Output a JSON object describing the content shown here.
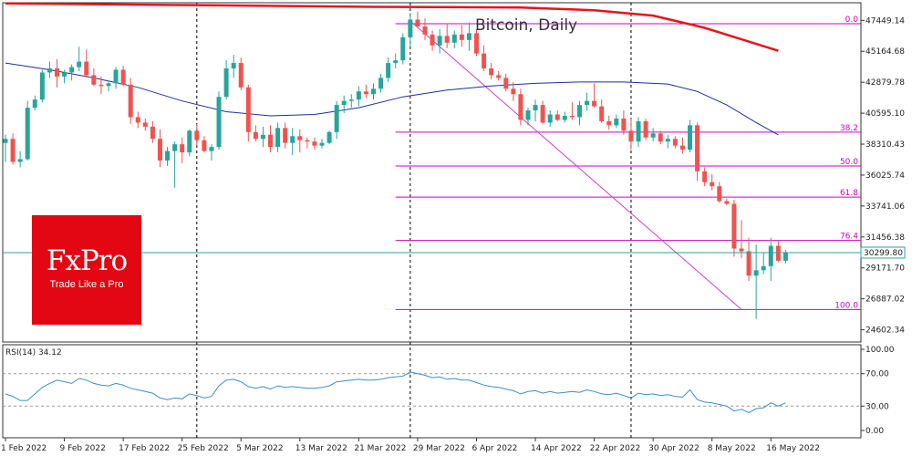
{
  "chart_data": [
    {
      "type": "candlestick",
      "title": "Bitcoin, Daily",
      "last_price": "30299.80",
      "y_ticks": [
        "47449.14",
        "45164.68",
        "42879.78",
        "40595.10",
        "38310.43",
        "36025.74",
        "33741.06",
        "31456.38",
        "29171.70",
        "26887.02",
        "24602.34"
      ],
      "y_tick_values": [
        47449.14,
        45164.68,
        42879.78,
        40595.1,
        38310.43,
        36025.74,
        33741.06,
        31456.38,
        29171.7,
        26887.02,
        24602.34
      ],
      "ylim": [
        23700,
        48750
      ],
      "x_labels": [
        "1 Feb 2022",
        "9 Feb 2022",
        "17 Feb 2022",
        "25 Feb 2022",
        "5 Mar 2022",
        "13 Mar 2022",
        "21 Mar 2022",
        "29 Mar 2022",
        "6 Apr 2022",
        "14 Apr 2022",
        "22 Apr 2022",
        "30 Apr 2022",
        "8 May 2022",
        "16 May 2022"
      ],
      "x_label_index": [
        0,
        8,
        16,
        24,
        32,
        40,
        48,
        56,
        64,
        72,
        80,
        88,
        96,
        104
      ],
      "vlines_index": [
        26,
        55,
        85
      ],
      "colors": {
        "up": "#26a69a",
        "down": "#ef5350",
        "ma_long": "#e8141c",
        "ma_short": "#1c2fa0",
        "fib": "#cc00cc",
        "trend": "#cc44cc",
        "price_line": "#26a69a"
      },
      "ohlc": [
        [
          38400,
          39000,
          37000,
          38700
        ],
        [
          38700,
          39100,
          36800,
          37000
        ],
        [
          37000,
          37800,
          36600,
          37200
        ],
        [
          37200,
          41500,
          37100,
          41000
        ],
        [
          41000,
          41900,
          40800,
          41600
        ],
        [
          41600,
          43800,
          41400,
          43600
        ],
        [
          43600,
          44400,
          43200,
          43900
        ],
        [
          43900,
          44600,
          42500,
          43300
        ],
        [
          43300,
          43800,
          42800,
          43600
        ],
        [
          43600,
          44200,
          43000,
          44000
        ],
        [
          44000,
          45500,
          43700,
          44400
        ],
        [
          44400,
          45300,
          43200,
          43400
        ],
        [
          43400,
          43900,
          42600,
          42700
        ],
        [
          42700,
          43300,
          42000,
          42600
        ],
        [
          42600,
          42900,
          42200,
          42800
        ],
        [
          42800,
          44000,
          42400,
          43800
        ],
        [
          43800,
          44100,
          42600,
          42700
        ],
        [
          42700,
          43200,
          39800,
          40300
        ],
        [
          40300,
          40700,
          39500,
          39900
        ],
        [
          39900,
          40200,
          39300,
          39600
        ],
        [
          39600,
          40000,
          38400,
          38700
        ],
        [
          38700,
          39400,
          36600,
          37100
        ],
        [
          37100,
          38100,
          36700,
          37800
        ],
        [
          37800,
          38500,
          35100,
          38300
        ],
        [
          38300,
          38800,
          36900,
          37700
        ],
        [
          37700,
          39400,
          37400,
          39300
        ],
        [
          39300,
          39800,
          38200,
          38600
        ],
        [
          38600,
          38900,
          37700,
          37800
        ],
        [
          37800,
          38300,
          37100,
          38100
        ],
        [
          38100,
          42200,
          37900,
          41800
        ],
        [
          41800,
          44500,
          41600,
          43900
        ],
        [
          43900,
          44900,
          43200,
          44300
        ],
        [
          44300,
          44700,
          42300,
          42500
        ],
        [
          42500,
          42700,
          38500,
          39200
        ],
        [
          39200,
          39700,
          38500,
          38700
        ],
        [
          38700,
          39600,
          38100,
          39000
        ],
        [
          39000,
          39700,
          37700,
          38100
        ],
        [
          38100,
          39900,
          37700,
          39500
        ],
        [
          39500,
          39900,
          38000,
          38400
        ],
        [
          38400,
          39500,
          37500,
          38900
        ],
        [
          38900,
          39400,
          37700,
          38600
        ],
        [
          38600,
          38800,
          38000,
          38500
        ],
        [
          38500,
          38800,
          37900,
          38200
        ],
        [
          38200,
          38700,
          38000,
          38400
        ],
        [
          38400,
          39300,
          38300,
          39200
        ],
        [
          39200,
          41500,
          38700,
          41200
        ],
        [
          41200,
          41900,
          40600,
          41500
        ],
        [
          41500,
          42000,
          41000,
          41600
        ],
        [
          41600,
          42600,
          41100,
          42200
        ],
        [
          42200,
          42700,
          41700,
          42000
        ],
        [
          42000,
          42800,
          41600,
          42400
        ],
        [
          42400,
          43500,
          42100,
          43200
        ],
        [
          43200,
          44700,
          42900,
          44300
        ],
        [
          44300,
          45000,
          43900,
          44500
        ],
        [
          44500,
          46500,
          44200,
          46200
        ],
        [
          46200,
          48000,
          45500,
          47500
        ],
        [
          47500,
          48100,
          46900,
          47000
        ],
        [
          47000,
          47600,
          46000,
          46400
        ],
        [
          46400,
          46700,
          45200,
          45600
        ],
        [
          45600,
          46800,
          45000,
          46300
        ],
        [
          46300,
          47200,
          45400,
          45800
        ],
        [
          45800,
          46700,
          45400,
          46400
        ],
        [
          46400,
          47100,
          45500,
          46000
        ],
        [
          46000,
          47300,
          45200,
          46500
        ],
        [
          46500,
          46800,
          44800,
          45000
        ],
        [
          45000,
          45600,
          43700,
          43900
        ],
        [
          43900,
          44300,
          43100,
          43400
        ],
        [
          43400,
          43700,
          43000,
          43200
        ],
        [
          43200,
          43500,
          42200,
          42400
        ],
        [
          42400,
          42900,
          41500,
          42000
        ],
        [
          42000,
          42400,
          39700,
          40100
        ],
        [
          40100,
          41000,
          39700,
          40800
        ],
        [
          40800,
          41600,
          40000,
          41200
        ],
        [
          41200,
          41500,
          39800,
          39900
        ],
        [
          39900,
          40800,
          39600,
          40500
        ],
        [
          40500,
          40800,
          40000,
          40100
        ],
        [
          40100,
          40700,
          39900,
          40400
        ],
        [
          40400,
          41400,
          40100,
          40300
        ],
        [
          40300,
          41500,
          39700,
          41200
        ],
        [
          41200,
          42100,
          40800,
          41500
        ],
        [
          41500,
          42800,
          41000,
          41100
        ],
        [
          41100,
          41600,
          39900,
          40000
        ],
        [
          40000,
          40400,
          39400,
          39700
        ],
        [
          39700,
          40500,
          39500,
          40200
        ],
        [
          40200,
          40800,
          39000,
          39300
        ],
        [
          39300,
          40200,
          37900,
          38500
        ],
        [
          38500,
          40300,
          38100,
          40000
        ],
        [
          40000,
          40200,
          38600,
          38800
        ],
        [
          38800,
          39500,
          38500,
          39100
        ],
        [
          39100,
          39300,
          38300,
          38500
        ],
        [
          38500,
          39000,
          38000,
          38700
        ],
        [
          38700,
          38900,
          38000,
          38200
        ],
        [
          38200,
          38800,
          37600,
          37900
        ],
        [
          37900,
          40100,
          37700,
          39700
        ],
        [
          39700,
          39900,
          35600,
          36300
        ],
        [
          36300,
          36600,
          35200,
          35500
        ],
        [
          35500,
          36100,
          34900,
          35200
        ],
        [
          35200,
          35500,
          34000,
          34100
        ],
        [
          34100,
          34300,
          33800,
          33900
        ],
        [
          33900,
          34200,
          30000,
          30600
        ],
        [
          30600,
          32700,
          29900,
          30400
        ],
        [
          30400,
          31400,
          28200,
          28600
        ],
        [
          28600,
          30900,
          25400,
          29000
        ],
        [
          29000,
          30300,
          28700,
          29300
        ],
        [
          29300,
          31400,
          28200,
          30800
        ],
        [
          30800,
          31200,
          29600,
          29700
        ],
        [
          29700,
          30500,
          29500,
          30300
        ]
      ],
      "ma_long": [
        [
          0,
          48700
        ],
        [
          20,
          48600
        ],
        [
          50,
          48450
        ],
        [
          70,
          48400
        ],
        [
          80,
          48200
        ],
        [
          88,
          47800
        ],
        [
          95,
          46900
        ],
        [
          100,
          46050
        ],
        [
          105,
          45200
        ]
      ],
      "ma_short": [
        [
          0,
          44300
        ],
        [
          6,
          43800
        ],
        [
          12,
          43200
        ],
        [
          18,
          42500
        ],
        [
          24,
          41500
        ],
        [
          30,
          40700
        ],
        [
          36,
          40400
        ],
        [
          42,
          40500
        ],
        [
          48,
          41000
        ],
        [
          54,
          41800
        ],
        [
          60,
          42300
        ],
        [
          66,
          42600
        ],
        [
          72,
          42800
        ],
        [
          78,
          42900
        ],
        [
          84,
          42900
        ],
        [
          90,
          42750
        ],
        [
          94,
          42200
        ],
        [
          98,
          41200
        ],
        [
          102,
          39900
        ],
        [
          105,
          39000
        ]
      ],
      "fib_levels": [
        {
          "label": "0.0",
          "value": 47200
        },
        {
          "label": "38.2",
          "value": 39200
        },
        {
          "label": "50.0",
          "value": 36700
        },
        {
          "label": "61.8",
          "value": 34400
        },
        {
          "label": "76.4",
          "value": 31200
        },
        {
          "label": "100.0",
          "value": 26100
        }
      ],
      "fib_start_index": 53,
      "trend_line": [
        [
          55,
          47400
        ],
        [
          100,
          26100
        ]
      ]
    },
    {
      "type": "line",
      "title": "RSI(14) 34.12",
      "y_ticks": [
        "100.00",
        "70.00",
        "30.00",
        "0.00"
      ],
      "y_tick_values": [
        100,
        70,
        30,
        0
      ],
      "ylim": [
        0,
        100
      ],
      "guide_levels": [
        70,
        30
      ],
      "color": "#3a8fd0",
      "values": [
        45,
        42,
        37,
        37,
        45,
        53,
        58,
        62,
        60,
        58,
        64,
        62,
        58,
        56,
        55,
        58,
        56,
        52,
        50,
        48,
        46,
        40,
        38,
        40,
        39,
        45,
        43,
        40,
        42,
        55,
        62,
        63,
        60,
        54,
        52,
        54,
        51,
        55,
        53,
        54,
        53,
        52,
        52,
        53,
        55,
        60,
        61,
        62,
        63,
        62,
        62,
        63,
        65,
        66,
        67,
        72,
        70,
        68,
        65,
        66,
        63,
        64,
        62,
        62,
        59,
        56,
        54,
        53,
        51,
        49,
        45,
        48,
        49,
        46,
        48,
        46,
        47,
        48,
        47,
        50,
        48,
        45,
        44,
        46,
        43,
        40,
        46,
        44,
        45,
        43,
        44,
        42,
        41,
        50,
        38,
        35,
        34,
        32,
        30,
        24,
        26,
        22,
        27,
        28,
        34,
        30,
        34
      ]
    }
  ],
  "watermark": {
    "brand": "FxPro",
    "tagline": "Trade Like a Pro"
  }
}
